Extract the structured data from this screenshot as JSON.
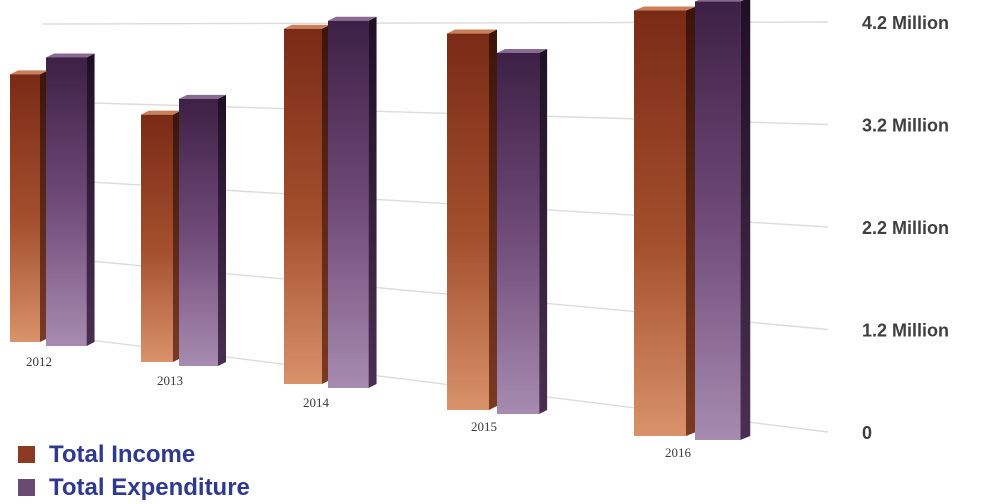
{
  "chart_data": {
    "type": "bar",
    "categories": [
      "2012",
      "2013",
      "2014",
      "2015",
      "2016"
    ],
    "series": [
      {
        "name": "Total Income",
        "values": [
          3.45,
          3.02,
          4.1,
          4.08,
          4.35
        ],
        "color": "#8c3a22"
      },
      {
        "name": "Total Expenditure",
        "values": [
          3.68,
          3.23,
          4.2,
          3.88,
          4.45
        ],
        "color": "#5a2f5e"
      }
    ],
    "y_ticks": [
      "4.2 Million",
      "3.2 Million",
      "2.2 Million",
      "1.2 Million",
      "0"
    ],
    "y_tick_values": [
      4.2,
      3.2,
      2.2,
      1.2,
      0
    ],
    "y_unit": "Million",
    "title": "",
    "xlabel": "",
    "ylabel": "",
    "grid": true,
    "legend_position": "bottom-left",
    "y_axis_position": "right",
    "style": "3d-perspective"
  }
}
